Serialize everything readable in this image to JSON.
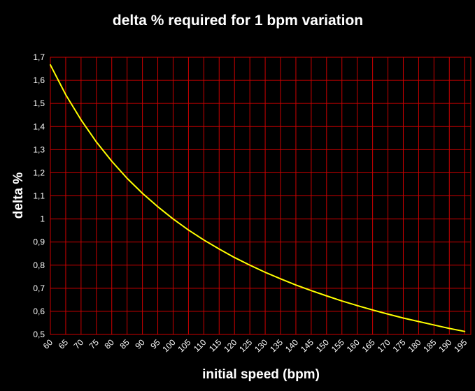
{
  "chart_data": {
    "type": "line",
    "title": "delta % required for 1 bpm variation",
    "xlabel": "initial speed (bpm)",
    "ylabel": "delta %",
    "xlim": [
      60,
      197
    ],
    "ylim": [
      0.5,
      1.7
    ],
    "x_ticks": [
      60,
      65,
      70,
      75,
      80,
      85,
      90,
      95,
      100,
      105,
      110,
      115,
      120,
      125,
      130,
      135,
      140,
      145,
      150,
      155,
      160,
      165,
      170,
      175,
      180,
      185,
      190,
      195
    ],
    "x_tick_labels": [
      "60",
      "65",
      "70",
      "75",
      "80",
      "85",
      "90",
      "95",
      "100",
      "105",
      "110",
      "115",
      "120",
      "125",
      "130",
      "135",
      "140",
      "145",
      "150",
      "155",
      "160",
      "165",
      "170",
      "175",
      "180",
      "185",
      "190",
      "195"
    ],
    "y_ticks": [
      0.5,
      0.6,
      0.7,
      0.8,
      0.9,
      1.0,
      1.1,
      1.2,
      1.3,
      1.4,
      1.5,
      1.6,
      1.7
    ],
    "y_tick_labels": [
      "0,5",
      "0,6",
      "0,7",
      "0,8",
      "0,9",
      "1",
      "1,1",
      "1,2",
      "1,3",
      "1,4",
      "1,5",
      "1,6",
      "1,7"
    ],
    "grid": true,
    "legend": "none",
    "series": [
      {
        "x": [
          60,
          65,
          70,
          75,
          80,
          85,
          90,
          95,
          100,
          105,
          110,
          115,
          120,
          125,
          130,
          135,
          140,
          145,
          150,
          155,
          160,
          165,
          170,
          175,
          180,
          185,
          190,
          195
        ],
        "values": [
          1.667,
          1.538,
          1.429,
          1.333,
          1.25,
          1.176,
          1.111,
          1.053,
          1.0,
          0.952,
          0.909,
          0.87,
          0.833,
          0.8,
          0.769,
          0.741,
          0.714,
          0.69,
          0.667,
          0.645,
          0.625,
          0.606,
          0.588,
          0.571,
          0.556,
          0.541,
          0.526,
          0.513
        ],
        "color": "#ffff00"
      }
    ],
    "colors": {
      "background": "#000000",
      "grid": "#cc0000",
      "text": "#ffffff",
      "line": "#ffff00"
    }
  }
}
